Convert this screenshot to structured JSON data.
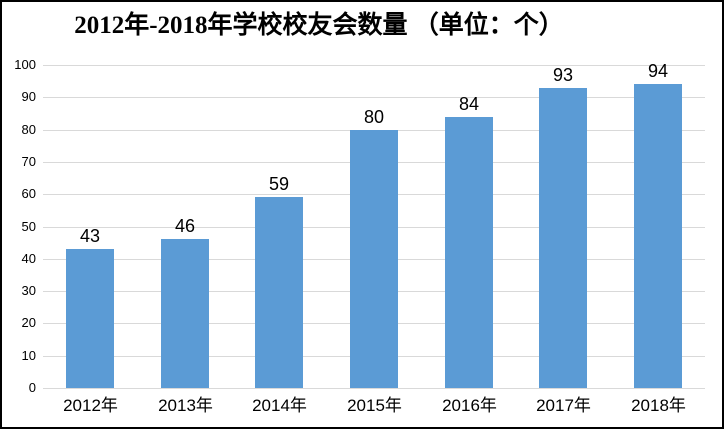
{
  "chart_data": {
    "type": "bar",
    "title": "2012年-2018年学校校友会数量 （单位：个）",
    "categories": [
      "2012年",
      "2013年",
      "2014年",
      "2015年",
      "2016年",
      "2017年",
      "2018年"
    ],
    "values": [
      43,
      46,
      59,
      80,
      84,
      93,
      94
    ],
    "xlabel": "",
    "ylabel": "",
    "ylim": [
      0,
      100
    ],
    "yticks": [
      0,
      10,
      20,
      30,
      40,
      50,
      60,
      70,
      80,
      90,
      100
    ],
    "grid": true,
    "legend": false,
    "data_labels": true,
    "bar_color": "#5B9BD5",
    "gridline_color": "#D9D9D9",
    "title_color": "#000000",
    "text_color": "#000000",
    "border_color": "#000000",
    "background_color": "#FFFFFF"
  }
}
